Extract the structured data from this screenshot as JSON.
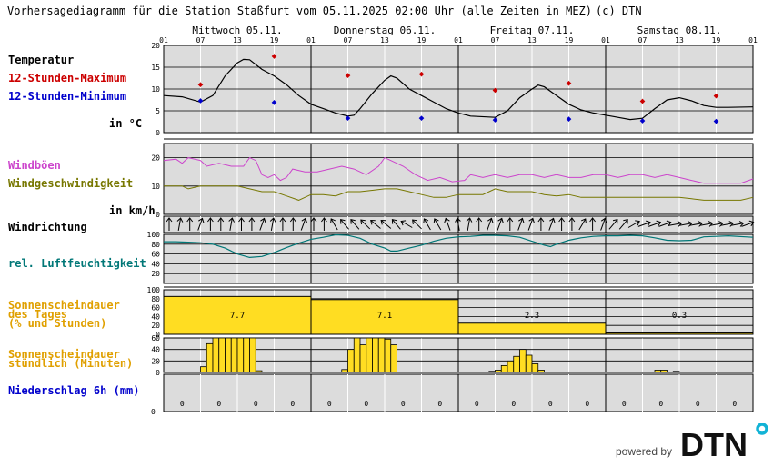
{
  "header": {
    "title": "Vorhersagediagramm für die Station Staßfurt vom 05.11.2025 02:00 Uhr (alle Zeiten in MEZ)",
    "copyright": "(c) DTN"
  },
  "days": [
    "Mittwoch 05.11.",
    "Donnerstag 06.11.",
    "Freitag 07.11.",
    "Samstag 08.11."
  ],
  "hour_ticks": [
    "01",
    "07",
    "13",
    "19",
    "01",
    "07",
    "13",
    "19",
    "01",
    "07",
    "13",
    "19",
    "01",
    "07",
    "13",
    "19",
    "01"
  ],
  "labels": {
    "temperatur": "Temperatur",
    "max": "12-Stunden-Maximum",
    "min": "12-Stunden-Minimum",
    "temp_unit": "in °C",
    "windboeen": "Windböen",
    "windgeschw": "Windgeschwindigkeit",
    "wind_unit": "in km/h",
    "windrichtung": "Windrichtung",
    "feuchte": "rel. Luftfeuchtigkeit",
    "sonne_tag_1": "Sonnenscheindauer",
    "sonne_tag_2": "des Tages",
    "sonne_tag_3": "(% und Stunden)",
    "sonne_std_1": "Sonnenscheindauer",
    "sonne_std_2": "stündlich (Minuten)",
    "niederschlag": "Niederschlag 6h (mm)"
  },
  "footer": {
    "powered": "powered by",
    "brand": "DTN"
  },
  "colors": {
    "max": "#cc0000",
    "min": "#0000cc",
    "gust": "#cc44cc",
    "wind": "#777700",
    "rh": "#007777",
    "sun": "#ffdd22",
    "precip": "#0000cc",
    "bg": "#dcdcdc"
  },
  "chart_data": {
    "type": "line",
    "x_hours": [
      0,
      96
    ],
    "temperature": {
      "ylim": [
        0,
        20
      ],
      "yticks": [
        0,
        5,
        10,
        15,
        20
      ],
      "curve": [
        [
          0,
          8.5
        ],
        [
          3,
          8.2
        ],
        [
          6,
          7
        ],
        [
          8,
          8.5
        ],
        [
          10,
          13
        ],
        [
          12,
          16
        ],
        [
          13,
          16.8
        ],
        [
          14,
          16.7
        ],
        [
          16,
          14.5
        ],
        [
          18,
          13
        ],
        [
          20,
          11
        ],
        [
          22,
          8.5
        ],
        [
          24,
          6.5
        ],
        [
          26,
          5.5
        ],
        [
          28,
          4.5
        ],
        [
          30,
          3.8
        ],
        [
          31,
          4
        ],
        [
          32,
          5.5
        ],
        [
          34,
          9
        ],
        [
          36,
          12
        ],
        [
          37,
          13
        ],
        [
          38,
          12.5
        ],
        [
          40,
          10
        ],
        [
          42,
          8.5
        ],
        [
          44,
          7
        ],
        [
          46,
          5.5
        ],
        [
          48,
          4.5
        ],
        [
          50,
          3.8
        ],
        [
          54,
          3.5
        ],
        [
          56,
          5
        ],
        [
          58,
          8
        ],
        [
          60,
          10
        ],
        [
          61,
          10.9
        ],
        [
          62,
          10.5
        ],
        [
          64,
          8.5
        ],
        [
          66,
          6.5
        ],
        [
          68,
          5.2
        ],
        [
          70,
          4.5
        ],
        [
          72,
          4
        ],
        [
          74,
          3.5
        ],
        [
          76,
          3
        ],
        [
          78,
          3.3
        ],
        [
          80,
          5.5
        ],
        [
          82,
          7.5
        ],
        [
          84,
          8
        ],
        [
          86,
          7.3
        ],
        [
          88,
          6.2
        ],
        [
          90,
          5.8
        ],
        [
          92,
          5.8
        ],
        [
          96,
          5.9
        ]
      ],
      "max_points": [
        [
          6,
          11
        ],
        [
          18,
          17.5
        ],
        [
          30,
          13.1
        ],
        [
          42,
          13.4
        ],
        [
          54,
          9.7
        ],
        [
          66,
          11.3
        ],
        [
          78,
          7.2
        ],
        [
          90,
          8.4
        ]
      ],
      "min_points": [
        [
          6,
          7.3
        ],
        [
          18,
          6.9
        ],
        [
          30,
          3.3
        ],
        [
          42,
          3.3
        ],
        [
          54,
          2.9
        ],
        [
          66,
          3.1
        ],
        [
          78,
          2.7
        ],
        [
          90,
          2.6
        ]
      ]
    },
    "wind": {
      "ylim": [
        0,
        25
      ],
      "yticks": [
        0,
        10,
        20
      ],
      "gusts": [
        [
          0,
          19
        ],
        [
          2,
          19.5
        ],
        [
          3,
          18
        ],
        [
          4,
          20
        ],
        [
          6,
          19
        ],
        [
          7,
          17
        ],
        [
          9,
          18
        ],
        [
          11,
          17
        ],
        [
          13,
          17
        ],
        [
          14,
          20
        ],
        [
          15,
          19
        ],
        [
          16,
          14
        ],
        [
          17,
          13
        ],
        [
          18,
          14
        ],
        [
          19,
          12
        ],
        [
          20,
          13
        ],
        [
          21,
          16
        ],
        [
          23,
          15
        ],
        [
          25,
          15
        ],
        [
          27,
          16
        ],
        [
          29,
          17
        ],
        [
          31,
          16
        ],
        [
          33,
          14
        ],
        [
          35,
          17
        ],
        [
          36,
          20
        ],
        [
          37,
          19
        ],
        [
          39,
          17
        ],
        [
          41,
          14
        ],
        [
          43,
          12
        ],
        [
          45,
          13
        ],
        [
          47,
          11.5
        ],
        [
          49,
          12
        ],
        [
          50,
          14
        ],
        [
          52,
          13
        ],
        [
          54,
          14
        ],
        [
          56,
          13
        ],
        [
          58,
          14
        ],
        [
          60,
          14
        ],
        [
          62,
          13
        ],
        [
          64,
          14
        ],
        [
          66,
          13
        ],
        [
          68,
          13
        ],
        [
          70,
          14
        ],
        [
          72,
          14
        ],
        [
          74,
          13
        ],
        [
          76,
          14
        ],
        [
          78,
          14
        ],
        [
          80,
          13
        ],
        [
          82,
          14
        ],
        [
          84,
          13
        ],
        [
          86,
          12
        ],
        [
          88,
          11
        ],
        [
          90,
          11
        ],
        [
          92,
          11
        ],
        [
          94,
          11
        ],
        [
          96,
          12.5
        ]
      ],
      "speed": [
        [
          0,
          10
        ],
        [
          3,
          10
        ],
        [
          4,
          9
        ],
        [
          6,
          10
        ],
        [
          8,
          10
        ],
        [
          10,
          10
        ],
        [
          12,
          10
        ],
        [
          14,
          9
        ],
        [
          16,
          8
        ],
        [
          18,
          8
        ],
        [
          20,
          6.5
        ],
        [
          22,
          5
        ],
        [
          24,
          7
        ],
        [
          26,
          7
        ],
        [
          28,
          6.5
        ],
        [
          30,
          8
        ],
        [
          32,
          8
        ],
        [
          34,
          8.5
        ],
        [
          36,
          9
        ],
        [
          38,
          9
        ],
        [
          40,
          8
        ],
        [
          42,
          7
        ],
        [
          44,
          6
        ],
        [
          46,
          6
        ],
        [
          48,
          7
        ],
        [
          50,
          7
        ],
        [
          52,
          7
        ],
        [
          54,
          9
        ],
        [
          56,
          8
        ],
        [
          58,
          8
        ],
        [
          60,
          8
        ],
        [
          62,
          7
        ],
        [
          64,
          6.5
        ],
        [
          66,
          7
        ],
        [
          68,
          6
        ],
        [
          70,
          6
        ],
        [
          72,
          6
        ],
        [
          74,
          6
        ],
        [
          76,
          6
        ],
        [
          78,
          6
        ],
        [
          80,
          6
        ],
        [
          82,
          6
        ],
        [
          84,
          6
        ],
        [
          86,
          5.5
        ],
        [
          88,
          5
        ],
        [
          90,
          5
        ],
        [
          92,
          5
        ],
        [
          94,
          5
        ],
        [
          96,
          6
        ]
      ]
    },
    "wind_direction_deg": [
      0,
      10,
      0,
      20,
      0,
      0,
      10,
      0,
      0,
      20,
      10,
      0,
      0,
      20,
      0,
      0,
      330,
      320,
      320,
      315,
      310,
      310,
      320,
      300,
      315,
      330,
      330,
      340,
      350,
      10,
      0,
      20,
      20,
      0,
      20,
      20,
      0,
      20,
      0,
      0,
      30,
      0,
      20,
      40,
      40,
      60,
      70,
      70,
      70,
      80,
      80,
      80,
      80,
      80,
      80,
      80,
      70
    ],
    "humidity": {
      "ylim": [
        0,
        100
      ],
      "yticks": [
        20,
        40,
        60,
        80,
        100
      ],
      "curve": [
        [
          0,
          85
        ],
        [
          2,
          85
        ],
        [
          4,
          84
        ],
        [
          6,
          83
        ],
        [
          8,
          80
        ],
        [
          10,
          72
        ],
        [
          12,
          60
        ],
        [
          14,
          53
        ],
        [
          16,
          55
        ],
        [
          18,
          63
        ],
        [
          20,
          73
        ],
        [
          22,
          82
        ],
        [
          24,
          90
        ],
        [
          26,
          94
        ],
        [
          28,
          99
        ],
        [
          30,
          98
        ],
        [
          32,
          92
        ],
        [
          34,
          80
        ],
        [
          36,
          72
        ],
        [
          37,
          66
        ],
        [
          38,
          66
        ],
        [
          40,
          72
        ],
        [
          42,
          78
        ],
        [
          44,
          86
        ],
        [
          46,
          92
        ],
        [
          48,
          95
        ],
        [
          50,
          96
        ],
        [
          52,
          98
        ],
        [
          54,
          98
        ],
        [
          56,
          97
        ],
        [
          58,
          94
        ],
        [
          60,
          86
        ],
        [
          62,
          78
        ],
        [
          63,
          75
        ],
        [
          64,
          80
        ],
        [
          66,
          88
        ],
        [
          68,
          93
        ],
        [
          70,
          96
        ],
        [
          72,
          97
        ],
        [
          74,
          97
        ],
        [
          76,
          98
        ],
        [
          78,
          97
        ],
        [
          80,
          93
        ],
        [
          82,
          88
        ],
        [
          84,
          87
        ],
        [
          86,
          88
        ],
        [
          88,
          95
        ],
        [
          90,
          96
        ],
        [
          92,
          97
        ],
        [
          96,
          94
        ]
      ]
    },
    "sunshine_daily": {
      "ylim": [
        0,
        100
      ],
      "yticks": [
        0,
        20,
        40,
        60,
        80,
        100
      ],
      "percent": [
        85,
        78,
        25,
        3
      ],
      "hours": [
        "7.7",
        "7.1",
        "2.3",
        "0.3"
      ]
    },
    "sunshine_hourly": {
      "ylim": [
        0,
        60
      ],
      "yticks": [
        0,
        20,
        40,
        60
      ],
      "start_hour": 6,
      "minutes": [
        [
          6,
          10
        ],
        [
          7,
          50
        ],
        [
          8,
          60
        ],
        [
          9,
          60
        ],
        [
          10,
          60
        ],
        [
          11,
          60
        ],
        [
          12,
          60
        ],
        [
          13,
          60
        ],
        [
          14,
          60
        ],
        [
          15,
          3
        ],
        [
          29,
          5
        ],
        [
          30,
          40
        ],
        [
          31,
          60
        ],
        [
          32,
          48
        ],
        [
          33,
          60
        ],
        [
          34,
          60
        ],
        [
          35,
          60
        ],
        [
          36,
          58
        ],
        [
          37,
          48
        ],
        [
          53,
          2
        ],
        [
          54,
          4
        ],
        [
          55,
          12
        ],
        [
          56,
          20
        ],
        [
          57,
          28
        ],
        [
          58,
          40
        ],
        [
          59,
          30
        ],
        [
          60,
          15
        ],
        [
          61,
          4
        ],
        [
          80,
          4
        ],
        [
          81,
          4
        ],
        [
          83,
          2
        ]
      ]
    },
    "precipitation": {
      "values": [
        "0",
        "0",
        "0",
        "0",
        "0",
        "0",
        "0",
        "0",
        "0",
        "0",
        "0",
        "0",
        "0",
        "0",
        "0",
        "0"
      ],
      "ylim": [
        0,
        1
      ]
    }
  }
}
